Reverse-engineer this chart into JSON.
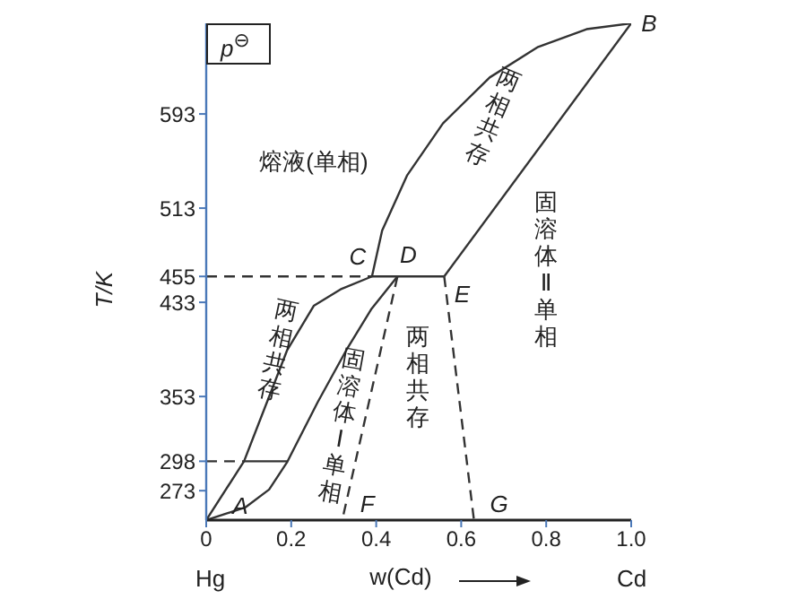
{
  "chart_data": {
    "type": "line",
    "xlabel": "w(Cd)",
    "ylabel": "T/K",
    "xlim": [
      0,
      1
    ],
    "xticks": [
      0,
      0.2,
      0.4,
      0.6,
      0.8,
      {
        "value": 1,
        "label": "1.0"
      }
    ],
    "ylim": [
      248,
      670
    ],
    "yticks": [
      273,
      298,
      353,
      433,
      455,
      513,
      593
    ],
    "grid": false,
    "legend": false,
    "marker": "none",
    "series": [
      {
        "color": "#333333",
        "line_style": "solid",
        "x": [
          0,
          0.089,
          0.19,
          0.253,
          0.316,
          0.39,
          0.414,
          0.473,
          0.557,
          0.667,
          0.781,
          0.895,
          1
        ],
        "values": [
          248,
          298,
          392,
          430,
          444,
          455,
          494,
          541,
          585,
          624,
          650,
          665,
          670
        ]
      },
      {
        "color": "#333333",
        "line_style": "solid",
        "x": [
          0,
          0.093,
          0.148,
          0.19,
          0.262,
          0.329,
          0.388,
          0.45
        ],
        "values": [
          248,
          259,
          274,
          297,
          348,
          392,
          427,
          455
        ]
      },
      {
        "color": "#333333",
        "line_style": "solid",
        "x": [
          0.56,
          1
        ],
        "values": [
          455,
          670
        ]
      },
      {
        "color": "#333333",
        "line_style": "solid",
        "x": [
          0.39,
          0.56
        ],
        "values": [
          455,
          455
        ]
      },
      {
        "color": "#333333",
        "line_style": "solid",
        "x": [
          0.089,
          0.19
        ],
        "values": [
          298,
          298
        ]
      },
      {
        "color": "#333333",
        "line_style": "dashed",
        "x": [
          0,
          0.39
        ],
        "values": [
          455,
          455
        ]
      },
      {
        "color": "#333333",
        "line_style": "dashed",
        "x": [
          0,
          0.089
        ],
        "values": [
          298,
          298
        ]
      },
      {
        "color": "#333333",
        "line_style": "dashed",
        "x": [
          0.45,
          0.32
        ],
        "values": [
          455,
          248
        ]
      },
      {
        "color": "#333333",
        "line_style": "dashed",
        "x": [
          0.56,
          0.63
        ],
        "values": [
          455,
          248
        ]
      }
    ],
    "annotations": [
      "p$^{⊖}$",
      "Hg",
      "Cd",
      "熔液(单相)",
      "两相共存",
      "两相共存",
      "固溶体Ⅰ单相",
      "两相共存",
      "固溶体Ⅱ单相",
      {
        "text": "A",
        "x": 0,
        "y": 248
      },
      {
        "text": "B",
        "x": 1,
        "y": 670
      },
      {
        "text": "C",
        "x": 0.39,
        "y": 455
      },
      {
        "text": "D",
        "x": 0.45,
        "y": 455
      },
      {
        "text": "E",
        "x": 0.56,
        "y": 455
      },
      {
        "text": "F",
        "x": 0.32,
        "y": 248
      },
      {
        "text": "G",
        "x": 0.63,
        "y": 248
      }
    ]
  }
}
